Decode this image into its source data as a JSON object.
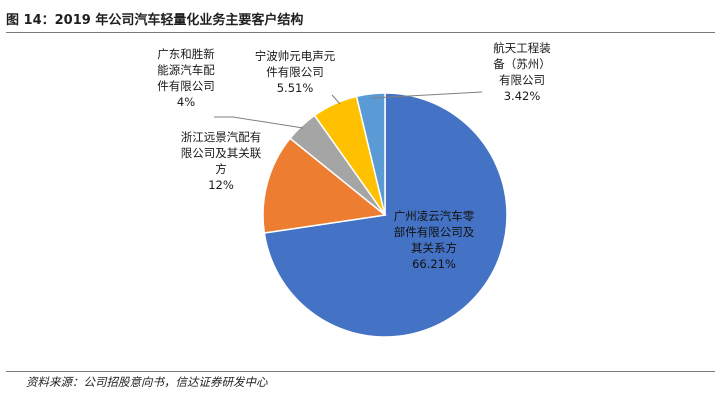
{
  "figure": {
    "title": "图 14：2019 年公司汽车轻量化业务主要客户结构",
    "source": "资料来源：公司招股意向书，信达证券研发中心"
  },
  "chart_data": {
    "type": "pie",
    "title": "",
    "slices": [
      {
        "label_lines": [
          "广州凌云汽车零",
          "部件有限公司及",
          "其关系方"
        ],
        "value": 66.21,
        "value_label": "66.21%",
        "color": "#4472C4"
      },
      {
        "label_lines": [
          "浙江远景汽配有",
          "限公司及其关联",
          "方"
        ],
        "value": 12,
        "value_label": "12%",
        "color": "#ED7D31"
      },
      {
        "label_lines": [
          "广东和胜新",
          "能源汽车配",
          "件有限公司"
        ],
        "value": 4,
        "value_label": "4%",
        "color": "#A5A5A5"
      },
      {
        "label_lines": [
          "宁波帅元电声元",
          "件有限公司"
        ],
        "value": 5.51,
        "value_label": "5.51%",
        "color": "#FFC000"
      },
      {
        "label_lines": [
          "航天工程装",
          "备（苏州）",
          "有限公司"
        ],
        "value": 3.42,
        "value_label": "3.42%",
        "color": "#5B9BD5"
      }
    ],
    "legend": "none"
  }
}
